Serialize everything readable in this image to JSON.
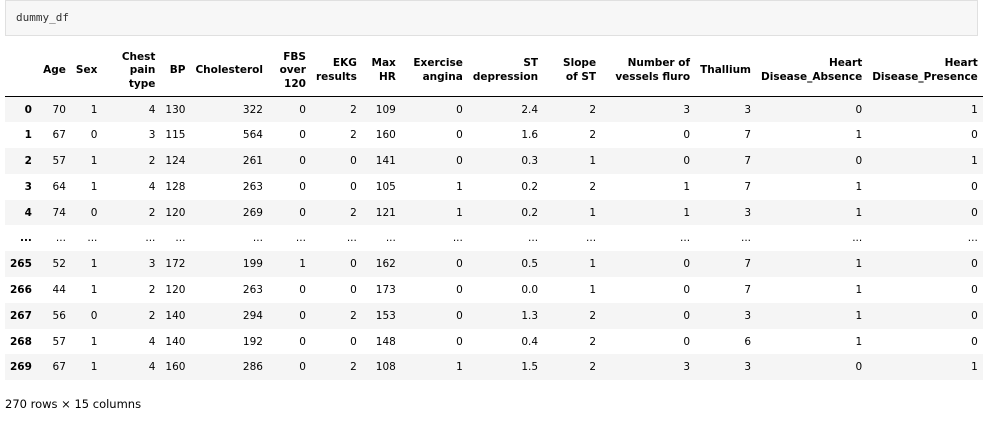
{
  "code_cell": {
    "text": "dummy_df"
  },
  "table": {
    "columns": [
      "",
      "Age",
      "Sex",
      "Chest pain type",
      "BP",
      "Cholesterol",
      "FBS over 120",
      "EKG results",
      "Max HR",
      "Exercise angina",
      "ST depression",
      "Slope of ST",
      "Number of vessels fluro",
      "Thallium",
      "Heart Disease_Absence",
      "Heart Disease_Presence"
    ],
    "rows": [
      [
        "0",
        "70",
        "1",
        "4",
        "130",
        "322",
        "0",
        "2",
        "109",
        "0",
        "2.4",
        "2",
        "3",
        "3",
        "0",
        "1"
      ],
      [
        "1",
        "67",
        "0",
        "3",
        "115",
        "564",
        "0",
        "2",
        "160",
        "0",
        "1.6",
        "2",
        "0",
        "7",
        "1",
        "0"
      ],
      [
        "2",
        "57",
        "1",
        "2",
        "124",
        "261",
        "0",
        "0",
        "141",
        "0",
        "0.3",
        "1",
        "0",
        "7",
        "0",
        "1"
      ],
      [
        "3",
        "64",
        "1",
        "4",
        "128",
        "263",
        "0",
        "0",
        "105",
        "1",
        "0.2",
        "2",
        "1",
        "7",
        "1",
        "0"
      ],
      [
        "4",
        "74",
        "0",
        "2",
        "120",
        "269",
        "0",
        "2",
        "121",
        "1",
        "0.2",
        "1",
        "1",
        "3",
        "1",
        "0"
      ],
      [
        "...",
        "...",
        "...",
        "...",
        "...",
        "...",
        "...",
        "...",
        "...",
        "...",
        "...",
        "...",
        "...",
        "...",
        "...",
        "..."
      ],
      [
        "265",
        "52",
        "1",
        "3",
        "172",
        "199",
        "1",
        "0",
        "162",
        "0",
        "0.5",
        "1",
        "0",
        "7",
        "1",
        "0"
      ],
      [
        "266",
        "44",
        "1",
        "2",
        "120",
        "263",
        "0",
        "0",
        "173",
        "0",
        "0.0",
        "1",
        "0",
        "7",
        "1",
        "0"
      ],
      [
        "267",
        "56",
        "0",
        "2",
        "140",
        "294",
        "0",
        "2",
        "153",
        "0",
        "1.3",
        "2",
        "0",
        "3",
        "1",
        "0"
      ],
      [
        "268",
        "57",
        "1",
        "4",
        "140",
        "192",
        "0",
        "0",
        "148",
        "0",
        "0.4",
        "2",
        "0",
        "6",
        "1",
        "0"
      ],
      [
        "269",
        "67",
        "1",
        "4",
        "160",
        "286",
        "0",
        "2",
        "108",
        "1",
        "1.5",
        "2",
        "3",
        "3",
        "0",
        "1"
      ]
    ]
  },
  "footer": {
    "text": "270 rows × 15 columns"
  }
}
